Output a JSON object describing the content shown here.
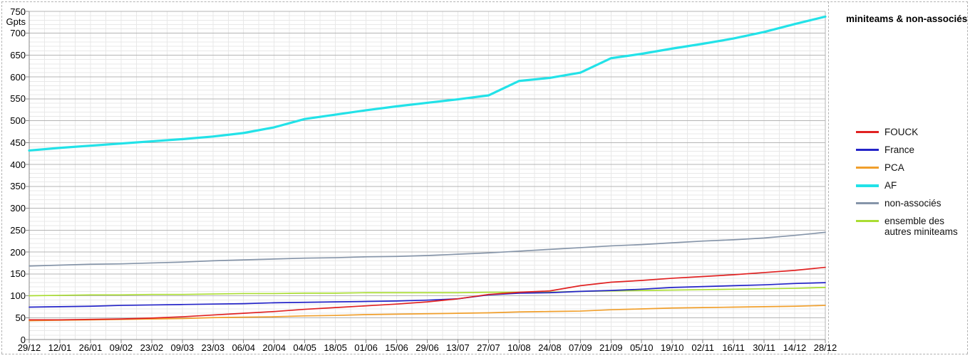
{
  "page": {
    "title": "miniteams & non-associés",
    "y_unit": "Gpts"
  },
  "chart_data": {
    "type": "line",
    "title": "miniteams & non-associés",
    "xlabel": "",
    "ylabel": "Gpts",
    "ylim": [
      0,
      750
    ],
    "y_major_step": 50,
    "y_minor_step": 10,
    "grid": "minor horizontal every 10, major every 50, weekly vertical gridlines",
    "legend_position": "right",
    "y_ticks": [
      750,
      700,
      650,
      600,
      550,
      500,
      450,
      400,
      350,
      300,
      250,
      200,
      150,
      100,
      50,
      0
    ],
    "categories": [
      "29/12",
      "12/01",
      "26/01",
      "09/02",
      "23/02",
      "09/03",
      "23/03",
      "06/04",
      "20/04",
      "04/05",
      "18/05",
      "01/06",
      "15/06",
      "29/06",
      "13/07",
      "27/07",
      "10/08",
      "24/08",
      "07/09",
      "21/09",
      "05/10",
      "19/10",
      "02/11",
      "16/11",
      "30/11",
      "14/12",
      "28/12"
    ],
    "series": [
      {
        "name": "FOUCK",
        "color": "#e02222",
        "width": 1.7,
        "values": [
          45,
          45,
          46,
          47,
          49,
          52,
          56,
          60,
          64,
          69,
          73,
          77,
          81,
          86,
          93,
          103,
          108,
          111,
          123,
          131,
          135,
          140,
          144,
          148,
          153,
          158,
          165
        ]
      },
      {
        "name": "France",
        "color": "#2424c8",
        "width": 1.7,
        "values": [
          74,
          75,
          76,
          78,
          79,
          80,
          81,
          82,
          84,
          85,
          86,
          87,
          88,
          90,
          93,
          102,
          106,
          107,
          110,
          112,
          115,
          119,
          121,
          123,
          125,
          128,
          130
        ]
      },
      {
        "name": "PCA",
        "color": "#f09f2c",
        "width": 1.7,
        "values": [
          43,
          44,
          45,
          46,
          47,
          48,
          50,
          51,
          52,
          54,
          55,
          57,
          58,
          59,
          60,
          61,
          63,
          64,
          65,
          68,
          70,
          72,
          73,
          74,
          75,
          76,
          78
        ]
      },
      {
        "name": "AF",
        "color": "#22e2e8",
        "width": 3.2,
        "values": [
          432,
          438,
          443,
          448,
          453,
          458,
          464,
          472,
          485,
          504,
          514,
          524,
          533,
          541,
          549,
          558,
          591,
          598,
          610,
          643,
          653,
          665,
          676,
          688,
          703,
          721,
          738
        ]
      },
      {
        "name": "non-associés",
        "color": "#8695a9",
        "width": 1.7,
        "values": [
          168,
          170,
          172,
          173,
          175,
          177,
          180,
          182,
          184,
          186,
          187,
          189,
          190,
          192,
          195,
          198,
          202,
          206,
          210,
          214,
          217,
          221,
          225,
          228,
          232,
          238,
          245
        ]
      },
      {
        "name": "ensemble des autres miniteams",
        "color": "#aadd33",
        "width": 1.7,
        "values": [
          100,
          101,
          102,
          102,
          103,
          103,
          104,
          105,
          105,
          106,
          106,
          107,
          107,
          107,
          107,
          108,
          108,
          108,
          110,
          111,
          112,
          113,
          114,
          115,
          116,
          117,
          119
        ]
      }
    ]
  }
}
